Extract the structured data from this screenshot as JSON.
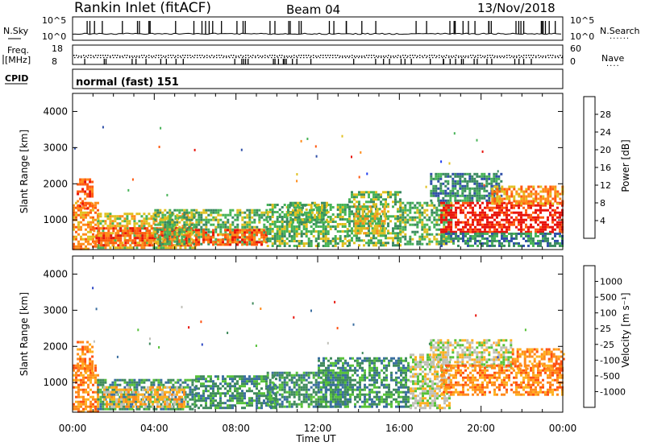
{
  "header": {
    "station": "Rankin Inlet (fitACF)",
    "beam": "Beam 04",
    "date": "13/Nov/2018"
  },
  "top_strip": {
    "left_label": "N.Sky",
    "left_ticks": [
      "10^5",
      "10^0"
    ],
    "right_ticks": [
      "10^5",
      "10^0"
    ],
    "right_label": "N.Search"
  },
  "freq_strip": {
    "left_label_1": "Freq.",
    "left_label_2": "[MHz]",
    "left_ticks": [
      "18",
      "8"
    ],
    "right_ticks": [
      "60",
      "0"
    ],
    "right_label": "Nave"
  },
  "cpid_strip": {
    "label": "CPID",
    "mode_text": "normal (fast) 151"
  },
  "colors": {
    "power_scale": [
      "#1f3cf0",
      "#2f4fa8",
      "#3a8a60",
      "#47b357",
      "#e0c020",
      "#ff8c1a",
      "#ff5a10",
      "#e8140c"
    ],
    "velocity_scale": [
      "#2e48c4",
      "#3a6ea0",
      "#3f8a5c",
      "#57c23a",
      "#c0c0b8",
      "#ffb020",
      "#ff8a1a",
      "#ff5010",
      "#e8140c"
    ]
  },
  "chart_data": [
    {
      "type": "heatmap",
      "panel": "power",
      "x": [
        "00:00",
        "04:00",
        "08:00",
        "12:00",
        "16:00",
        "20:00",
        "00:00"
      ],
      "xlabel": "",
      "ylabel": "Slant Range [km]",
      "ylim": [
        180,
        4500
      ],
      "yticks": [
        1000,
        2000,
        3000,
        4000
      ],
      "colorbar_label": "Power [dB]",
      "colorbar_ticks": [
        "28",
        "24",
        "20",
        "16",
        "12",
        "8",
        "4"
      ],
      "bands": [
        {
          "t0": 0.0,
          "t1": 1.2,
          "r0": 180,
          "r1": 1500,
          "level": 5
        },
        {
          "t0": 0.2,
          "t1": 1.0,
          "r0": 1300,
          "r1": 2150,
          "level": 6
        },
        {
          "t0": 1.2,
          "t1": 6.0,
          "r0": 250,
          "r1": 1200,
          "level": 4
        },
        {
          "t0": 1.0,
          "t1": 6.0,
          "r0": 330,
          "r1": 800,
          "level": 6
        },
        {
          "t0": 4.0,
          "t1": 9.5,
          "r0": 300,
          "r1": 1300,
          "level": 3
        },
        {
          "t0": 6.0,
          "t1": 9.5,
          "r0": 330,
          "r1": 750,
          "level": 6
        },
        {
          "t0": 9.5,
          "t1": 13.5,
          "r0": 300,
          "r1": 1450,
          "level": 3
        },
        {
          "t0": 10.5,
          "t1": 12.5,
          "r0": 900,
          "r1": 1500,
          "level": 3
        },
        {
          "t0": 13.5,
          "t1": 16.0,
          "r0": 300,
          "r1": 1800,
          "level": 3
        },
        {
          "t0": 13.8,
          "t1": 15.3,
          "r0": 600,
          "r1": 1400,
          "level": 4
        },
        {
          "t0": 16.0,
          "t1": 18.5,
          "r0": 300,
          "r1": 1500,
          "level": 3
        },
        {
          "t0": 17.5,
          "t1": 21.0,
          "r0": 1500,
          "r1": 2300,
          "level": 2
        },
        {
          "t0": 18.0,
          "t1": 24.0,
          "r0": 650,
          "r1": 1500,
          "level": 7
        },
        {
          "t0": 20.5,
          "t1": 24.0,
          "r0": 1450,
          "r1": 1950,
          "level": 5
        },
        {
          "t0": 18.0,
          "t1": 24.0,
          "r0": 250,
          "r1": 650,
          "level": 2
        }
      ]
    },
    {
      "type": "heatmap",
      "panel": "velocity",
      "x": [
        "00:00",
        "04:00",
        "08:00",
        "12:00",
        "16:00",
        "20:00",
        "00:00"
      ],
      "xlabel": "Time UT",
      "ylabel": "Slant Range [km]",
      "ylim": [
        180,
        4500
      ],
      "yticks": [
        1000,
        2000,
        3000,
        4000
      ],
      "colorbar_label": "Velocity [m s⁻¹]",
      "colorbar_ticks": [
        "1000",
        "500",
        "100",
        "25",
        "-25",
        "-100",
        "-500",
        "-1000"
      ],
      "bands": [
        {
          "t0": 0.0,
          "t1": 1.2,
          "r0": 180,
          "r1": 1500,
          "level": 6
        },
        {
          "t0": 0.2,
          "t1": 1.0,
          "r0": 1300,
          "r1": 2150,
          "level": 6
        },
        {
          "t0": 1.2,
          "t1": 6.0,
          "r0": 250,
          "r1": 1100,
          "level": 2
        },
        {
          "t0": 1.5,
          "t1": 5.5,
          "r0": 350,
          "r1": 900,
          "level": 5
        },
        {
          "t0": 6.0,
          "t1": 10.0,
          "r0": 300,
          "r1": 1200,
          "level": 2
        },
        {
          "t0": 9.5,
          "t1": 13.5,
          "r0": 300,
          "r1": 1300,
          "level": 2
        },
        {
          "t0": 12.0,
          "t1": 16.5,
          "r0": 300,
          "r1": 1700,
          "level": 2
        },
        {
          "t0": 16.5,
          "t1": 18.5,
          "r0": 300,
          "r1": 1800,
          "level": 4
        },
        {
          "t0": 17.5,
          "t1": 21.5,
          "r0": 1450,
          "r1": 2200,
          "level": 4
        },
        {
          "t0": 18.0,
          "t1": 24.0,
          "r0": 650,
          "r1": 1500,
          "level": 6
        },
        {
          "t0": 21.5,
          "t1": 24.0,
          "r0": 1400,
          "r1": 1950,
          "level": 6
        }
      ]
    }
  ]
}
